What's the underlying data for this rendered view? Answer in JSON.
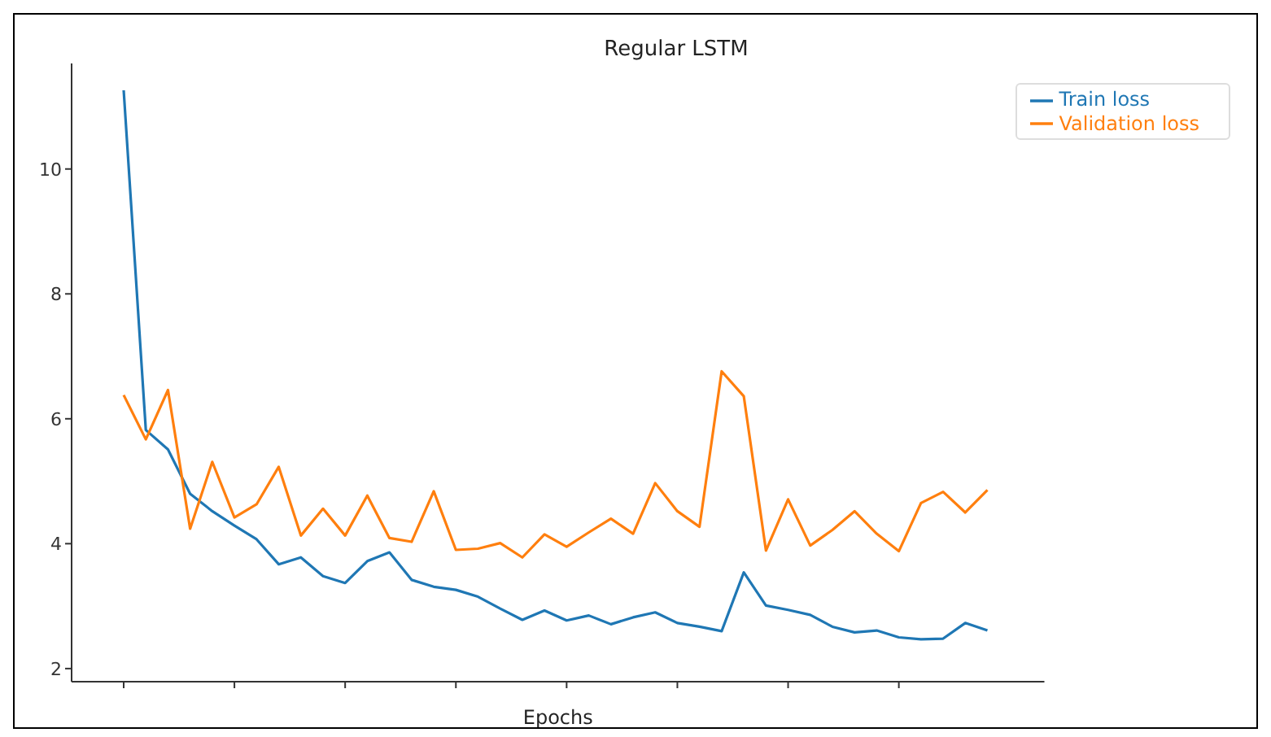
{
  "chart_data": {
    "type": "line",
    "title": "Regular LSTM",
    "xlabel": "Epochs",
    "categories": [
      null,
      null,
      null,
      null,
      null,
      null,
      null,
      null,
      null,
      null,
      null,
      null,
      null,
      null,
      null,
      null,
      null,
      null,
      null,
      null,
      null,
      null,
      null,
      null,
      null,
      null,
      null,
      null,
      null,
      null,
      null,
      null,
      null,
      null,
      null,
      null,
      null,
      null,
      null,
      null
    ],
    "series": [
      {
        "name": "Train loss",
        "color": "#1f77b4",
        "values": [
          11.26,
          5.82,
          5.51,
          4.8,
          4.52,
          4.29,
          4.07,
          3.67,
          3.78,
          3.48,
          3.37,
          3.72,
          3.86,
          3.42,
          3.31,
          3.26,
          3.15,
          2.96,
          2.78,
          2.93,
          2.77,
          2.85,
          2.71,
          2.82,
          2.9,
          2.73,
          2.67,
          2.6,
          3.54,
          3.01,
          2.94,
          2.86,
          2.67,
          2.58,
          2.61,
          2.5,
          2.47,
          2.48,
          2.73,
          2.61
        ]
      },
      {
        "name": "Validation loss",
        "color": "#ff7f0e",
        "values": [
          6.38,
          5.67,
          6.46,
          4.24,
          5.31,
          4.42,
          4.63,
          5.23,
          4.13,
          4.56,
          4.13,
          4.77,
          4.09,
          4.03,
          4.84,
          3.9,
          3.92,
          4.01,
          3.78,
          4.15,
          3.95,
          4.18,
          4.4,
          4.16,
          4.97,
          4.52,
          4.27,
          6.76,
          6.36,
          3.89,
          4.71,
          3.97,
          4.22,
          4.52,
          4.16,
          3.88,
          4.65,
          4.83,
          4.5,
          4.86
        ]
      }
    ],
    "ylim": [
      1.79,
      11.69
    ],
    "yticks": [
      2,
      4,
      6,
      8,
      10
    ],
    "grid": false,
    "legend": "top right",
    "marker": "none",
    "line_style": "solid"
  }
}
